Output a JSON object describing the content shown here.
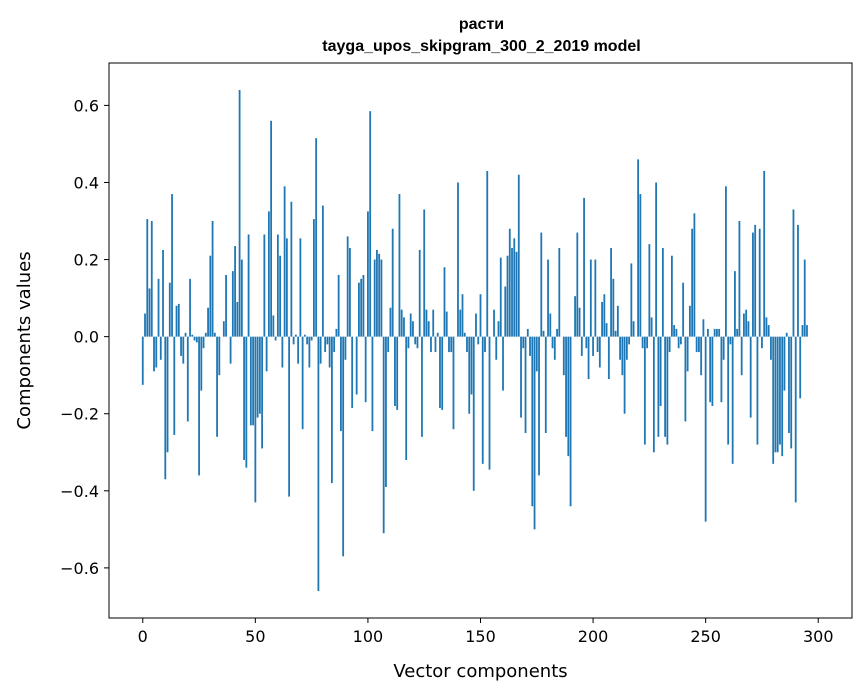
{
  "chart_data": {
    "type": "bar",
    "title": "расти",
    "subtitle": "tayga_upos_skipgram_300_2_2019 model",
    "xlabel": "Vector components",
    "ylabel": "Components values",
    "xlim": [
      -15,
      315
    ],
    "ylim": [
      -0.73,
      0.71
    ],
    "xticks": [
      0,
      50,
      100,
      150,
      200,
      250,
      300
    ],
    "yticks": [
      -0.6,
      -0.4,
      -0.2,
      0.0,
      0.2,
      0.4,
      0.6
    ],
    "ytick_labels": [
      "−0.6",
      "−0.4",
      "−0.2",
      "0.0",
      "0.2",
      "0.4",
      "0.6"
    ],
    "bar_color": "#1f77b4",
    "series": [
      {
        "name": "components",
        "values": [
          -0.125,
          0.06,
          0.305,
          0.125,
          0.3,
          -0.09,
          -0.08,
          0.15,
          -0.06,
          0.225,
          -0.37,
          -0.3,
          0.14,
          0.37,
          -0.255,
          0.08,
          0.085,
          -0.05,
          -0.07,
          0.01,
          -0.22,
          0.15,
          0.005,
          -0.01,
          -0.015,
          -0.36,
          -0.14,
          -0.03,
          0.01,
          0.075,
          0.21,
          0.3,
          0.01,
          -0.26,
          -0.1,
          0.0,
          0.04,
          0.16,
          0.0,
          -0.07,
          0.17,
          0.235,
          0.09,
          0.64,
          0.2,
          -0.32,
          -0.34,
          0.265,
          -0.23,
          -0.23,
          -0.43,
          -0.21,
          -0.2,
          -0.29,
          0.265,
          -0.09,
          0.325,
          0.56,
          0.055,
          -0.01,
          0.265,
          0.21,
          -0.08,
          0.39,
          0.255,
          -0.415,
          0.35,
          -0.02,
          0.005,
          -0.07,
          0.255,
          -0.24,
          0.005,
          -0.02,
          -0.08,
          -0.01,
          0.305,
          0.515,
          -0.66,
          -0.07,
          0.34,
          -0.04,
          -0.02,
          -0.08,
          -0.38,
          -0.04,
          0.02,
          0.16,
          -0.245,
          -0.57,
          -0.06,
          0.26,
          0.23,
          -0.185,
          0.0,
          -0.15,
          0.14,
          0.15,
          0.16,
          -0.17,
          0.325,
          0.585,
          -0.245,
          0.2,
          0.225,
          0.215,
          0.2,
          -0.51,
          -0.39,
          -0.04,
          0.075,
          0.28,
          -0.18,
          -0.19,
          0.37,
          0.07,
          0.05,
          -0.32,
          -0.03,
          0.06,
          0.04,
          -0.02,
          -0.03,
          0.225,
          -0.26,
          0.33,
          0.07,
          0.04,
          -0.04,
          0.07,
          -0.04,
          0.01,
          -0.185,
          -0.19,
          0.18,
          0.065,
          -0.04,
          -0.04,
          -0.24,
          0.0,
          0.4,
          0.07,
          0.11,
          0.01,
          -0.04,
          -0.2,
          -0.15,
          -0.4,
          0.06,
          -0.02,
          0.11,
          -0.33,
          -0.04,
          0.43,
          -0.345,
          0.0,
          0.07,
          -0.06,
          0.04,
          0.205,
          -0.14,
          0.13,
          0.21,
          0.28,
          0.23,
          0.255,
          0.22,
          0.42,
          -0.21,
          -0.03,
          -0.25,
          0.02,
          -0.05,
          -0.44,
          -0.5,
          -0.09,
          -0.36,
          0.27,
          0.015,
          -0.25,
          0.2,
          0.06,
          -0.03,
          -0.06,
          0.02,
          0.23,
          0.0,
          -0.1,
          -0.26,
          -0.31,
          -0.44,
          0.0,
          0.105,
          0.27,
          0.075,
          -0.05,
          0.36,
          -0.03,
          -0.11,
          0.2,
          -0.05,
          0.2,
          -0.04,
          -0.08,
          0.09,
          0.11,
          0.035,
          -0.11,
          0.23,
          0.15,
          0.015,
          0.08,
          -0.06,
          -0.1,
          -0.2,
          -0.06,
          -0.02,
          0.19,
          0.04,
          0.0,
          0.46,
          0.37,
          -0.03,
          -0.28,
          -0.03,
          0.24,
          0.05,
          -0.3,
          0.4,
          -0.26,
          -0.18,
          0.23,
          -0.26,
          -0.28,
          -0.04,
          0.21,
          0.03,
          0.02,
          -0.03,
          -0.02,
          0.14,
          -0.22,
          -0.09,
          0.08,
          0.28,
          0.32,
          -0.04,
          -0.04,
          -0.1,
          0.045,
          -0.48,
          0.02,
          -0.17,
          -0.18,
          0.02,
          0.02,
          0.02,
          -0.17,
          -0.06,
          0.39,
          -0.28,
          -0.02,
          -0.33,
          0.17,
          0.02,
          0.3,
          -0.1,
          0.06,
          0.07,
          0.04,
          -0.21,
          0.27,
          0.29,
          -0.28,
          0.28,
          -0.03,
          0.43,
          0.05,
          0.03,
          -0.06,
          -0.33,
          -0.3,
          -0.3,
          -0.28,
          -0.31,
          -0.14,
          0.01,
          -0.25,
          -0.29,
          0.33,
          -0.43,
          0.29,
          -0.16,
          0.03,
          0.2,
          0.03
        ]
      }
    ]
  }
}
